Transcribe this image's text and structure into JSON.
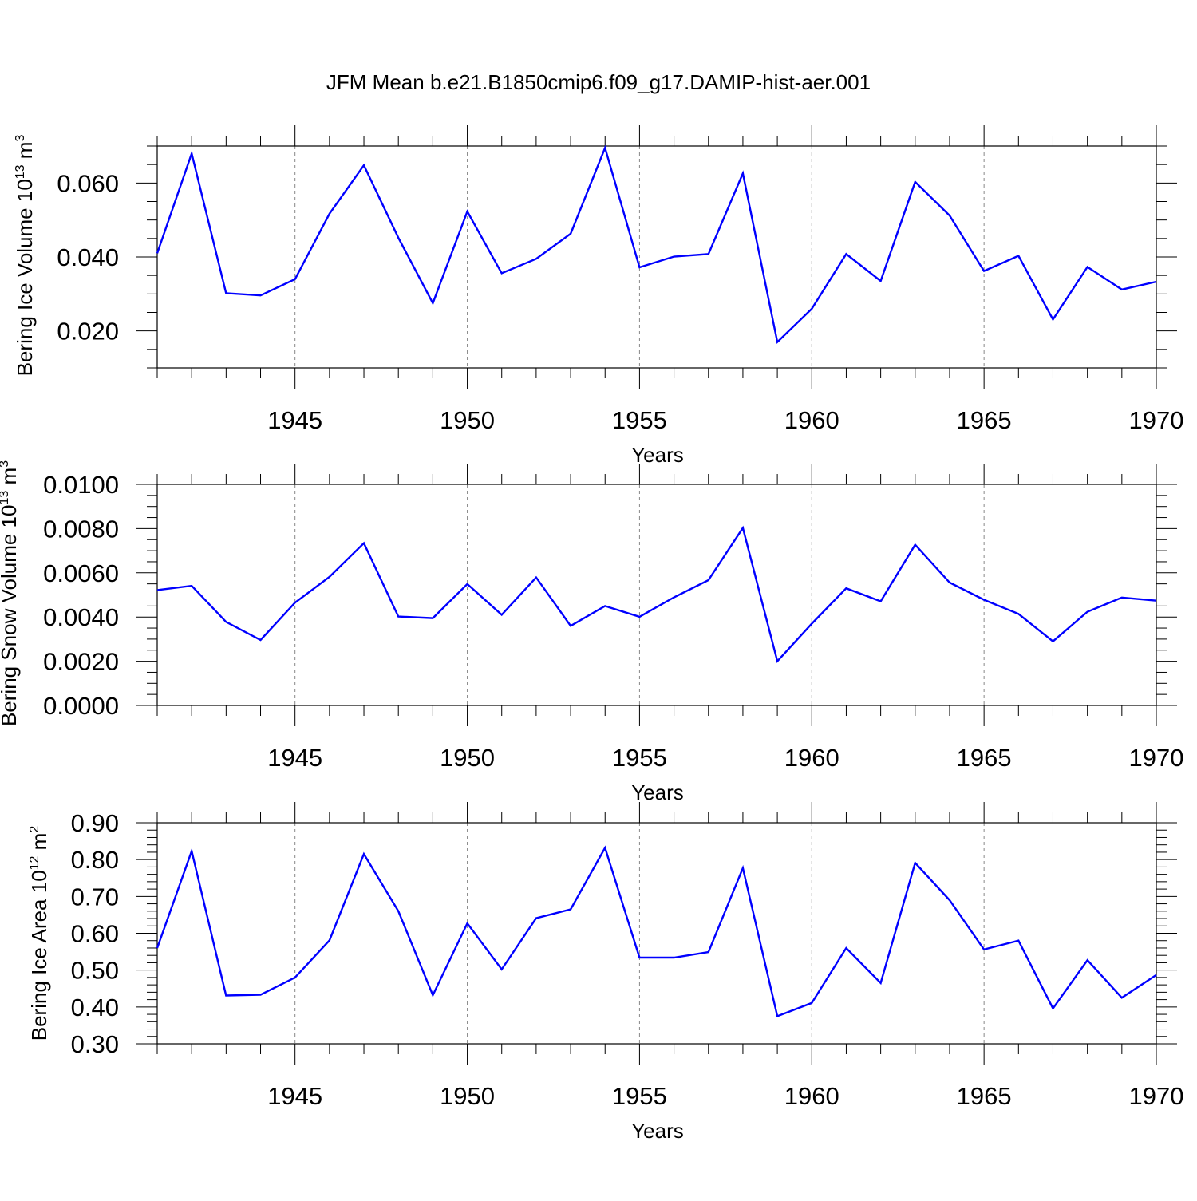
{
  "figure_title": "JFM Mean b.e21.B1850cmip6.f09_g17.DAMIP-hist-aer.001",
  "colors": {
    "series": "#0000ff",
    "axis": "#000000",
    "grid": "#888888"
  },
  "chart_data": [
    {
      "type": "line",
      "title": "",
      "xlabel": "Years",
      "ylabel_prefix": "Bering Ice Volume 10",
      "ylabel_exp": "13",
      "ylabel_unit": " m",
      "ylabel_unit_exp": "3",
      "xlim": [
        1941,
        1970
      ],
      "ylim": [
        0.01,
        0.07
      ],
      "xticks": [
        1945,
        1950,
        1955,
        1960,
        1965,
        1970
      ],
      "xtick_labels": [
        "1945",
        "1950",
        "1955",
        "1960",
        "1965",
        "1970"
      ],
      "yticks": [
        0.02,
        0.04,
        0.06
      ],
      "ytick_labels": [
        "0.020",
        "0.040",
        "0.060"
      ],
      "y_minor_step": 0.005,
      "grid": "vertical dashed at major x ticks",
      "x": [
        1941,
        1942,
        1943,
        1944,
        1945,
        1946,
        1947,
        1948,
        1949,
        1950,
        1951,
        1952,
        1953,
        1954,
        1955,
        1956,
        1957,
        1958,
        1959,
        1960,
        1961,
        1962,
        1963,
        1964,
        1965,
        1966,
        1967,
        1968,
        1969,
        1970
      ],
      "series": [
        {
          "name": "Bering Ice Volume",
          "values": [
            0.041,
            0.068,
            0.0302,
            0.0296,
            0.034,
            0.0517,
            0.0648,
            0.0452,
            0.0275,
            0.0523,
            0.0356,
            0.0395,
            0.0463,
            0.0695,
            0.0372,
            0.0401,
            0.0408,
            0.0626,
            0.017,
            0.026,
            0.0408,
            0.0335,
            0.0603,
            0.0512,
            0.0362,
            0.0403,
            0.0231,
            0.0373,
            0.0312,
            0.0333
          ]
        }
      ]
    },
    {
      "type": "line",
      "title": "",
      "xlabel": "Years",
      "ylabel_prefix": "Bering Snow Volume 10",
      "ylabel_exp": "13",
      "ylabel_unit": " m",
      "ylabel_unit_exp": "3",
      "xlim": [
        1941,
        1970
      ],
      "ylim": [
        0.0,
        0.01
      ],
      "xticks": [
        1945,
        1950,
        1955,
        1960,
        1965,
        1970
      ],
      "xtick_labels": [
        "1945",
        "1950",
        "1955",
        "1960",
        "1965",
        "1970"
      ],
      "yticks": [
        0.0,
        0.002,
        0.004,
        0.006,
        0.008,
        0.01
      ],
      "ytick_labels": [
        "0.0000",
        "0.0020",
        "0.0040",
        "0.0060",
        "0.0080",
        "0.0100"
      ],
      "y_minor_step": 0.0005,
      "grid": "vertical dashed at major x ticks",
      "x": [
        1941,
        1942,
        1943,
        1944,
        1945,
        1946,
        1947,
        1948,
        1949,
        1950,
        1951,
        1952,
        1953,
        1954,
        1955,
        1956,
        1957,
        1958,
        1959,
        1960,
        1961,
        1962,
        1963,
        1964,
        1965,
        1966,
        1967,
        1968,
        1969,
        1970
      ],
      "series": [
        {
          "name": "Bering Snow Volume",
          "values": [
            0.00522,
            0.00541,
            0.00378,
            0.00296,
            0.00465,
            0.00582,
            0.00734,
            0.00402,
            0.00395,
            0.00549,
            0.0041,
            0.00579,
            0.0036,
            0.0045,
            0.00401,
            0.00489,
            0.00567,
            0.00803,
            0.002,
            0.0037,
            0.0053,
            0.00471,
            0.00727,
            0.00556,
            0.00478,
            0.00414,
            0.0029,
            0.00424,
            0.00488,
            0.00474
          ]
        }
      ]
    },
    {
      "type": "line",
      "title": "",
      "xlabel": "Years",
      "ylabel_prefix": "Bering Ice Area 10",
      "ylabel_exp": "12",
      "ylabel_unit": " m",
      "ylabel_unit_exp": "2",
      "xlim": [
        1941,
        1970
      ],
      "ylim": [
        0.3,
        0.9
      ],
      "xticks": [
        1945,
        1950,
        1955,
        1960,
        1965,
        1970
      ],
      "xtick_labels": [
        "1945",
        "1950",
        "1955",
        "1960",
        "1965",
        "1970"
      ],
      "yticks": [
        0.3,
        0.4,
        0.5,
        0.6,
        0.7,
        0.8,
        0.9
      ],
      "ytick_labels": [
        "0.30",
        "0.40",
        "0.50",
        "0.60",
        "0.70",
        "0.80",
        "0.90"
      ],
      "y_minor_step": 0.02,
      "grid": "vertical dashed at major x ticks",
      "x": [
        1941,
        1942,
        1943,
        1944,
        1945,
        1946,
        1947,
        1948,
        1949,
        1950,
        1951,
        1952,
        1953,
        1954,
        1955,
        1956,
        1957,
        1958,
        1959,
        1960,
        1961,
        1962,
        1963,
        1964,
        1965,
        1966,
        1967,
        1968,
        1969,
        1970
      ],
      "series": [
        {
          "name": "Bering Ice Area",
          "values": [
            0.56,
            0.823,
            0.431,
            0.433,
            0.48,
            0.581,
            0.815,
            0.66,
            0.432,
            0.627,
            0.502,
            0.641,
            0.665,
            0.832,
            0.534,
            0.534,
            0.549,
            0.777,
            0.375,
            0.411,
            0.56,
            0.465,
            0.791,
            0.69,
            0.556,
            0.58,
            0.396,
            0.527,
            0.425,
            0.487
          ]
        }
      ]
    }
  ]
}
